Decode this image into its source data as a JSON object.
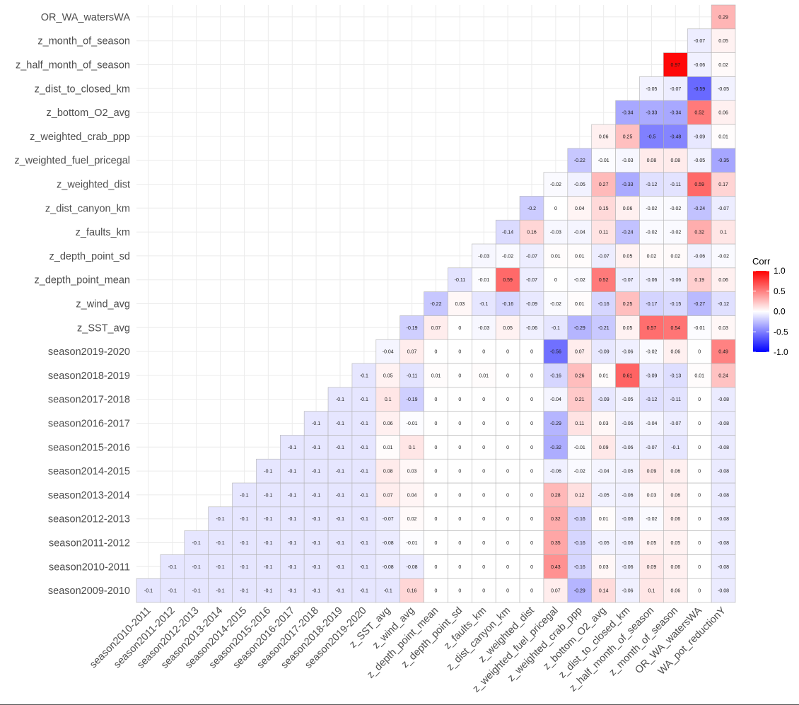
{
  "chart_data": {
    "type": "heatmap",
    "title": "",
    "legend": {
      "title": "Corr",
      "ticks": [
        1.0,
        0.5,
        0.0,
        -0.5,
        -1.0
      ],
      "tick_labels": [
        "1.0",
        "0.5",
        "0.0",
        "-0.5",
        "-1.0"
      ],
      "low_color": "#0000ff",
      "mid_color": "#ffffff",
      "high_color": "#ff0000",
      "position": "right"
    },
    "x_labels": [
      "season2010-2011",
      "season2011-2012",
      "season2012-2013",
      "season2013-2014",
      "season2014-2015",
      "season2015-2016",
      "season2016-2017",
      "season2017-2018",
      "season2018-2019",
      "season2019-2020",
      "z_SST_avg",
      "z_wind_avg",
      "z_depth_point_mean",
      "z_depth_point_sd",
      "z_faults_km",
      "z_dist_canyon_km",
      "z_weighted_dist",
      "z_weighted_fuel_pricegal",
      "z_weighted_crab_ppp",
      "z_bottom_O2_avg",
      "z_dist_to_closed_km",
      "z_half_month_of_season",
      "z_month_of_season",
      "OR_WA_watersWA",
      "WA_pot_reductionY"
    ],
    "y_labels": [
      "season2009-2010",
      "season2010-2011",
      "season2011-2012",
      "season2012-2013",
      "season2013-2014",
      "season2014-2015",
      "season2015-2016",
      "season2016-2017",
      "season2017-2018",
      "season2018-2019",
      "season2019-2020",
      "z_SST_avg",
      "z_wind_avg",
      "z_depth_point_mean",
      "z_depth_point_sd",
      "z_faults_km",
      "z_dist_canyon_km",
      "z_weighted_dist",
      "z_weighted_fuel_pricegal",
      "z_weighted_crab_ppp",
      "z_bottom_O2_avg",
      "z_dist_to_closed_km",
      "z_half_month_of_season",
      "z_month_of_season",
      "OR_WA_watersWA"
    ],
    "rows": [
      [
        -0.1,
        -0.1,
        -0.1,
        -0.1,
        -0.1,
        -0.1,
        -0.1,
        -0.1,
        -0.1,
        -0.1,
        -0.1,
        0.16,
        0,
        0,
        0,
        0,
        0,
        0.07,
        -0.29,
        0.14,
        -0.06,
        0.1,
        0.06,
        0,
        -0.08
      ],
      [
        null,
        -0.1,
        -0.1,
        -0.1,
        -0.1,
        -0.1,
        -0.1,
        -0.1,
        -0.1,
        -0.1,
        -0.08,
        -0.08,
        0,
        0,
        0,
        0,
        0,
        0.43,
        -0.16,
        0.03,
        -0.06,
        0.09,
        0.06,
        0,
        -0.08
      ],
      [
        null,
        null,
        -0.1,
        -0.1,
        -0.1,
        -0.1,
        -0.1,
        -0.1,
        -0.1,
        -0.1,
        -0.08,
        -0.01,
        0,
        0,
        0,
        0,
        0,
        0.35,
        -0.16,
        -0.05,
        -0.06,
        0.05,
        0.05,
        0,
        -0.08
      ],
      [
        null,
        null,
        null,
        -0.1,
        -0.1,
        -0.1,
        -0.1,
        -0.1,
        -0.1,
        -0.1,
        -0.07,
        0.02,
        0,
        0,
        0,
        0,
        0,
        0.32,
        -0.16,
        0.01,
        -0.06,
        -0.02,
        0.06,
        0,
        -0.08
      ],
      [
        null,
        null,
        null,
        null,
        -0.1,
        -0.1,
        -0.1,
        -0.1,
        -0.1,
        -0.1,
        0.07,
        0.04,
        0,
        0,
        0,
        0,
        0,
        0.28,
        0.12,
        -0.05,
        -0.06,
        0.03,
        0.06,
        0,
        -0.08
      ],
      [
        null,
        null,
        null,
        null,
        null,
        -0.1,
        -0.1,
        -0.1,
        -0.1,
        -0.1,
        0.08,
        0.03,
        0,
        0,
        0,
        0,
        0,
        -0.06,
        -0.02,
        -0.04,
        -0.05,
        0.09,
        0.06,
        0,
        -0.08
      ],
      [
        null,
        null,
        null,
        null,
        null,
        null,
        -0.1,
        -0.1,
        -0.1,
        -0.1,
        0.01,
        0.1,
        0,
        0,
        0,
        0,
        0,
        -0.32,
        -0.01,
        0.09,
        -0.06,
        -0.07,
        -0.1,
        0,
        -0.08
      ],
      [
        null,
        null,
        null,
        null,
        null,
        null,
        null,
        -0.1,
        -0.1,
        -0.1,
        0.06,
        -0.01,
        0,
        0,
        0,
        0,
        0,
        -0.29,
        0.11,
        0.03,
        -0.06,
        -0.04,
        -0.07,
        0,
        -0.08
      ],
      [
        null,
        null,
        null,
        null,
        null,
        null,
        null,
        null,
        -0.1,
        -0.1,
        0.1,
        -0.19,
        0,
        0,
        0,
        0,
        0,
        -0.04,
        0.21,
        -0.09,
        -0.05,
        -0.12,
        -0.11,
        0,
        -0.08
      ],
      [
        null,
        null,
        null,
        null,
        null,
        null,
        null,
        null,
        null,
        -0.1,
        0.05,
        -0.11,
        0.01,
        0,
        0.01,
        0,
        0,
        -0.16,
        0.26,
        0.01,
        0.61,
        -0.09,
        -0.13,
        0.01,
        0.24
      ],
      [
        null,
        null,
        null,
        null,
        null,
        null,
        null,
        null,
        null,
        null,
        -0.04,
        0.07,
        0,
        0,
        0,
        0,
        0,
        -0.56,
        0.07,
        -0.09,
        -0.06,
        -0.02,
        0.06,
        0,
        0.49
      ],
      [
        null,
        null,
        null,
        null,
        null,
        null,
        null,
        null,
        null,
        null,
        null,
        -0.19,
        0.07,
        0,
        -0.03,
        0.05,
        -0.06,
        -0.1,
        -0.29,
        -0.21,
        0.05,
        0.57,
        0.54,
        -0.01,
        0.03
      ],
      [
        null,
        null,
        null,
        null,
        null,
        null,
        null,
        null,
        null,
        null,
        null,
        null,
        -0.22,
        0.03,
        -0.1,
        -0.16,
        -0.09,
        -0.02,
        0.01,
        -0.16,
        0.25,
        -0.17,
        -0.15,
        -0.27,
        -0.12
      ],
      [
        null,
        null,
        null,
        null,
        null,
        null,
        null,
        null,
        null,
        null,
        null,
        null,
        null,
        -0.11,
        -0.01,
        0.59,
        -0.07,
        0,
        -0.02,
        0.52,
        -0.07,
        -0.06,
        -0.06,
        0.19,
        0.06
      ],
      [
        null,
        null,
        null,
        null,
        null,
        null,
        null,
        null,
        null,
        null,
        null,
        null,
        null,
        null,
        -0.03,
        -0.02,
        -0.07,
        0.01,
        0.01,
        -0.07,
        0.05,
        0.02,
        0.02,
        -0.06,
        -0.02
      ],
      [
        null,
        null,
        null,
        null,
        null,
        null,
        null,
        null,
        null,
        null,
        null,
        null,
        null,
        null,
        null,
        -0.14,
        0.16,
        -0.03,
        -0.04,
        0.11,
        -0.24,
        -0.02,
        -0.02,
        0.32,
        0.1
      ],
      [
        null,
        null,
        null,
        null,
        null,
        null,
        null,
        null,
        null,
        null,
        null,
        null,
        null,
        null,
        null,
        null,
        -0.2,
        0,
        0.04,
        0.15,
        0.06,
        -0.02,
        -0.02,
        -0.24,
        -0.07
      ],
      [
        null,
        null,
        null,
        null,
        null,
        null,
        null,
        null,
        null,
        null,
        null,
        null,
        null,
        null,
        null,
        null,
        null,
        -0.02,
        -0.05,
        0.27,
        -0.33,
        -0.12,
        -0.11,
        0.59,
        0.17
      ],
      [
        null,
        null,
        null,
        null,
        null,
        null,
        null,
        null,
        null,
        null,
        null,
        null,
        null,
        null,
        null,
        null,
        null,
        null,
        -0.22,
        -0.01,
        -0.03,
        0.08,
        0.08,
        -0.05,
        -0.35
      ],
      [
        null,
        null,
        null,
        null,
        null,
        null,
        null,
        null,
        null,
        null,
        null,
        null,
        null,
        null,
        null,
        null,
        null,
        null,
        null,
        0.06,
        0.25,
        -0.5,
        -0.48,
        -0.09,
        0.01
      ],
      [
        null,
        null,
        null,
        null,
        null,
        null,
        null,
        null,
        null,
        null,
        null,
        null,
        null,
        null,
        null,
        null,
        null,
        null,
        null,
        null,
        -0.34,
        -0.33,
        -0.34,
        0.52,
        0.06
      ],
      [
        null,
        null,
        null,
        null,
        null,
        null,
        null,
        null,
        null,
        null,
        null,
        null,
        null,
        null,
        null,
        null,
        null,
        null,
        null,
        null,
        null,
        -0.05,
        -0.07,
        -0.59,
        -0.05
      ],
      [
        null,
        null,
        null,
        null,
        null,
        null,
        null,
        null,
        null,
        null,
        null,
        null,
        null,
        null,
        null,
        null,
        null,
        null,
        null,
        null,
        null,
        null,
        0.97,
        -0.06,
        0.02
      ],
      [
        null,
        null,
        null,
        null,
        null,
        null,
        null,
        null,
        null,
        null,
        null,
        null,
        null,
        null,
        null,
        null,
        null,
        null,
        null,
        null,
        null,
        null,
        null,
        -0.07,
        0.05
      ],
      [
        null,
        null,
        null,
        null,
        null,
        null,
        null,
        null,
        null,
        null,
        null,
        null,
        null,
        null,
        null,
        null,
        null,
        null,
        null,
        null,
        null,
        null,
        null,
        null,
        0.29
      ]
    ]
  }
}
